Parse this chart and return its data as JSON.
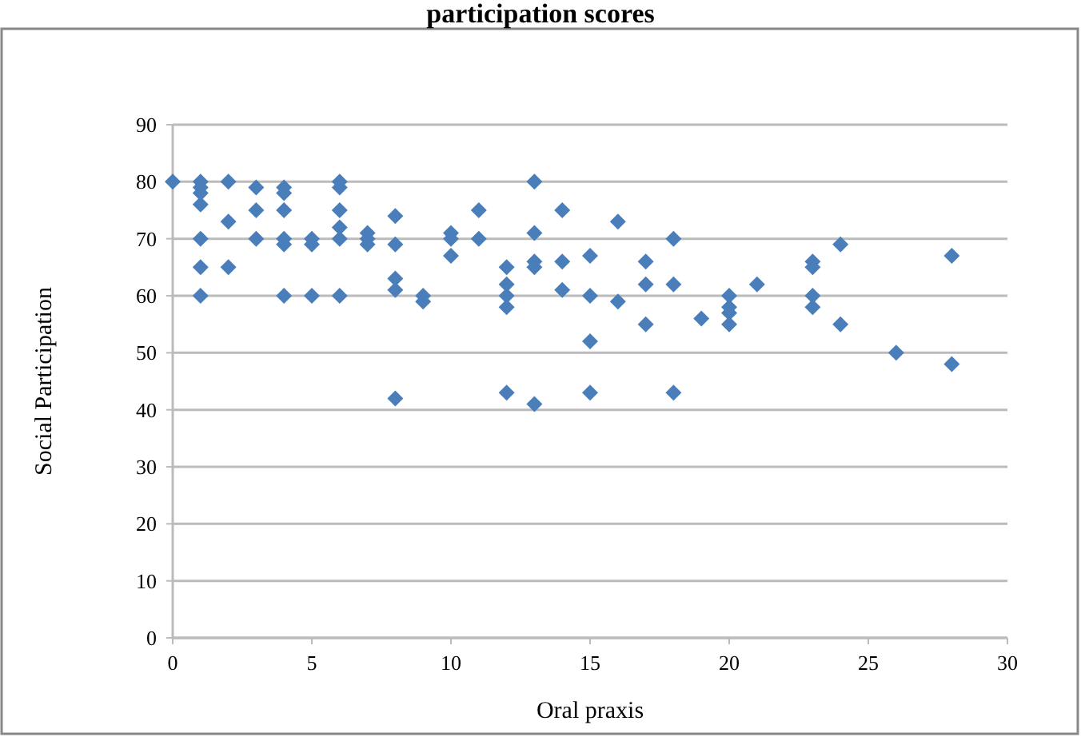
{
  "chart_data": {
    "type": "scatter",
    "title": "participation scores",
    "xlabel": "Oral praxis",
    "ylabel": "Social Participation",
    "x": [
      0,
      1,
      1,
      1,
      1,
      1,
      1,
      1,
      2,
      2,
      2,
      3,
      3,
      3,
      4,
      4,
      4,
      4,
      4,
      4,
      5,
      5,
      5,
      6,
      6,
      6,
      6,
      6,
      6,
      7,
      7,
      7,
      8,
      8,
      8,
      8,
      8,
      9,
      9,
      10,
      10,
      10,
      11,
      11,
      12,
      12,
      12,
      12,
      12,
      13,
      13,
      13,
      13,
      13,
      14,
      14,
      14,
      15,
      15,
      15,
      15,
      16,
      16,
      17,
      17,
      17,
      18,
      18,
      18,
      19,
      20,
      20,
      20,
      20,
      21,
      23,
      23,
      23,
      23,
      24,
      24,
      26,
      28,
      28
    ],
    "values": [
      80,
      80,
      79,
      78,
      76,
      70,
      65,
      60,
      80,
      73,
      65,
      79,
      75,
      70,
      79,
      78,
      75,
      70,
      69,
      60,
      70,
      69,
      60,
      80,
      79,
      75,
      72,
      70,
      60,
      71,
      70,
      69,
      74,
      69,
      63,
      61,
      42,
      60,
      59,
      71,
      70,
      67,
      75,
      70,
      65,
      62,
      60,
      58,
      43,
      80,
      71,
      66,
      65,
      41,
      75,
      66,
      61,
      67,
      60,
      52,
      43,
      73,
      59,
      66,
      62,
      55,
      70,
      62,
      43,
      56,
      60,
      58,
      57,
      55,
      62,
      66,
      65,
      60,
      58,
      69,
      55,
      50,
      67,
      48
    ],
    "color": "#4a7ebb",
    "marker": "diamond",
    "grid": "y",
    "xlim": [
      0,
      30
    ],
    "xticks": [
      0,
      5,
      10,
      15,
      20,
      25,
      30
    ],
    "ylim": [
      0,
      90
    ],
    "yticks": [
      0,
      10,
      20,
      30,
      40,
      50,
      60,
      70,
      80,
      90
    ]
  }
}
